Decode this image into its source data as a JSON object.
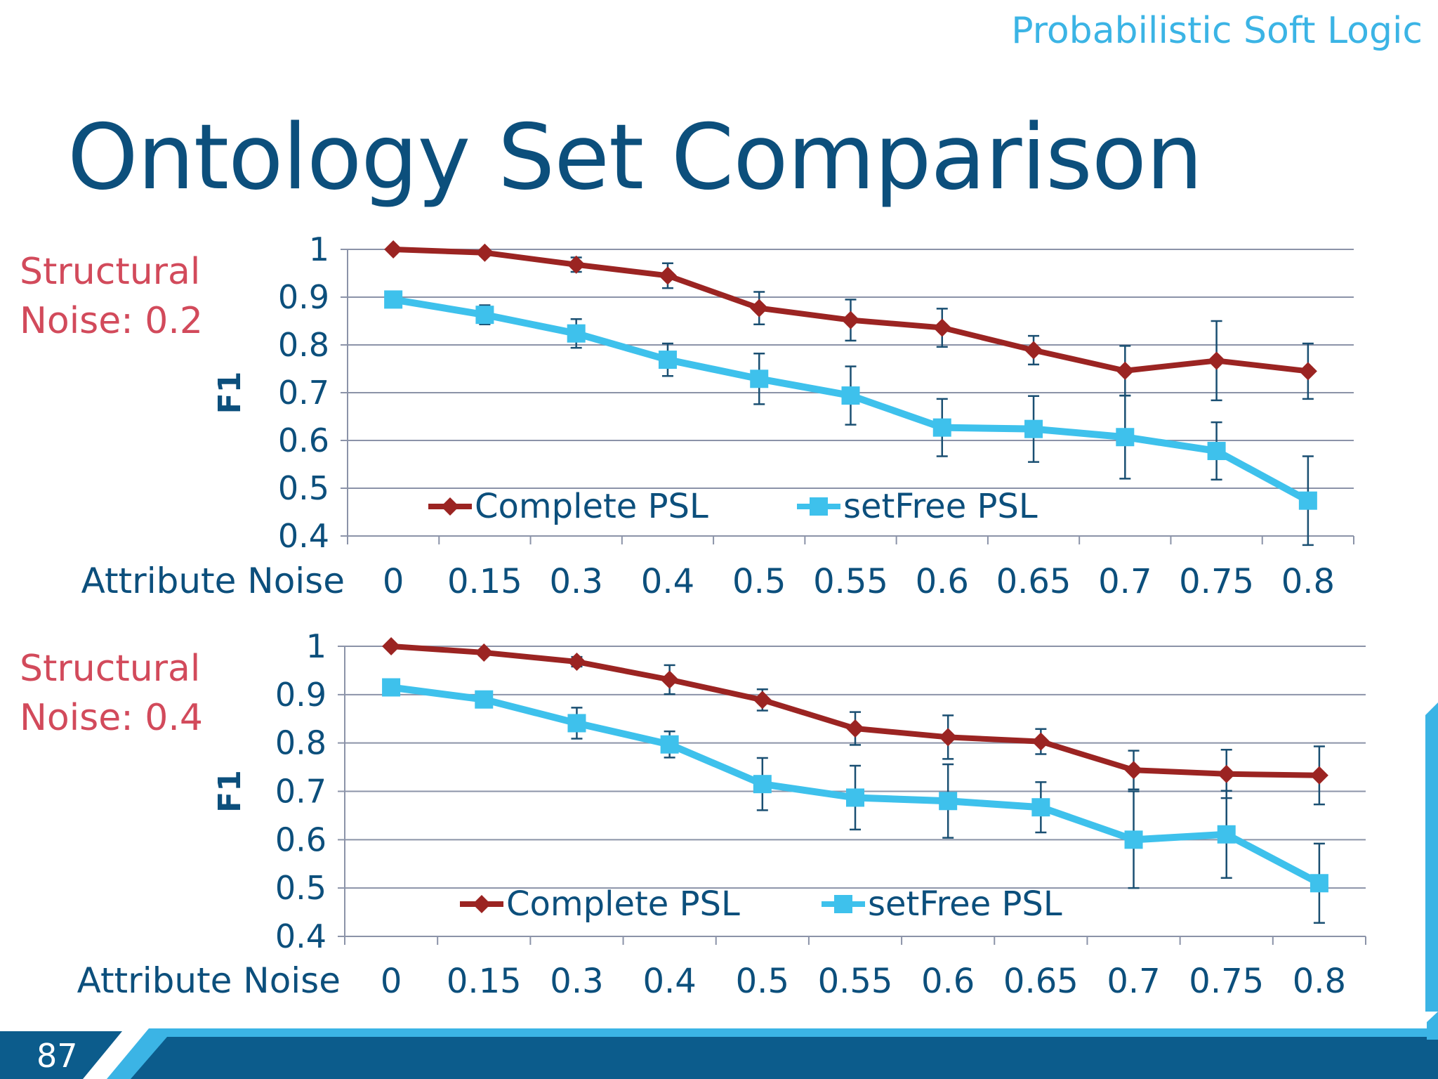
{
  "slide": {
    "header": "Probabilistic Soft Logic",
    "title": "Ontology Set Comparison",
    "page_number": "87",
    "footer_colors": {
      "dark": "#0c5c8c",
      "light": "#3bb4e5"
    }
  },
  "chart_data": [
    {
      "type": "line",
      "side_label": [
        "Structural",
        "Noise: 0.2"
      ],
      "ylabel": "F1",
      "xlabel": "Attribute Noise",
      "categories": [
        "0",
        "0.15",
        "0.3",
        "0.4",
        "0.5",
        "0.55",
        "0.6",
        "0.65",
        "0.7",
        "0.75",
        "0.8"
      ],
      "ylim": [
        0.4,
        1
      ],
      "yticks": [
        "0.4",
        "0.5",
        "0.6",
        "0.7",
        "0.8",
        "0.9",
        "1"
      ],
      "grid": true,
      "legend": "inside-bottom",
      "series": [
        {
          "name": "Complete PSL",
          "color": "#9b2422",
          "marker": "diamond",
          "values": [
            1.0,
            0.993,
            0.968,
            0.945,
            0.877,
            0.852,
            0.836,
            0.789,
            0.746,
            0.767,
            0.745
          ],
          "errors": [
            0,
            0.006,
            0.015,
            0.026,
            0.034,
            0.043,
            0.04,
            0.03,
            0.052,
            0.083,
            0.058
          ]
        },
        {
          "name": "setFree PSL",
          "color": "#3ec1ec",
          "marker": "square",
          "values": [
            0.895,
            0.863,
            0.824,
            0.769,
            0.729,
            0.694,
            0.627,
            0.624,
            0.607,
            0.578,
            0.474
          ],
          "errors": [
            0.007,
            0.02,
            0.03,
            0.034,
            0.053,
            0.061,
            0.06,
            0.069,
            0.087,
            0.06,
            0.093
          ]
        }
      ]
    },
    {
      "type": "line",
      "side_label": [
        "Structural",
        "Noise: 0.4"
      ],
      "ylabel": "F1",
      "xlabel": "Attribute Noise",
      "categories": [
        "0",
        "0.15",
        "0.3",
        "0.4",
        "0.5",
        "0.55",
        "0.6",
        "0.65",
        "0.7",
        "0.75",
        "0.8"
      ],
      "ylim": [
        0.4,
        1
      ],
      "yticks": [
        "0.4",
        "0.5",
        "0.6",
        "0.7",
        "0.8",
        "0.9",
        "1"
      ],
      "grid": true,
      "legend": "inside-bottom",
      "series": [
        {
          "name": "Complete PSL",
          "color": "#9b2422",
          "marker": "diamond",
          "values": [
            1.0,
            0.987,
            0.968,
            0.931,
            0.889,
            0.83,
            0.812,
            0.803,
            0.744,
            0.736,
            0.733
          ],
          "errors": [
            0,
            0.006,
            0.01,
            0.03,
            0.022,
            0.034,
            0.045,
            0.026,
            0.04,
            0.05,
            0.06
          ]
        },
        {
          "name": "setFree PSL",
          "color": "#3ec1ec",
          "marker": "square",
          "values": [
            0.915,
            0.89,
            0.841,
            0.797,
            0.715,
            0.687,
            0.68,
            0.667,
            0.6,
            0.611,
            0.51
          ],
          "errors": [
            0.007,
            0.012,
            0.032,
            0.027,
            0.054,
            0.066,
            0.076,
            0.052,
            0.1,
            0.09,
            0.082
          ]
        }
      ]
    }
  ]
}
